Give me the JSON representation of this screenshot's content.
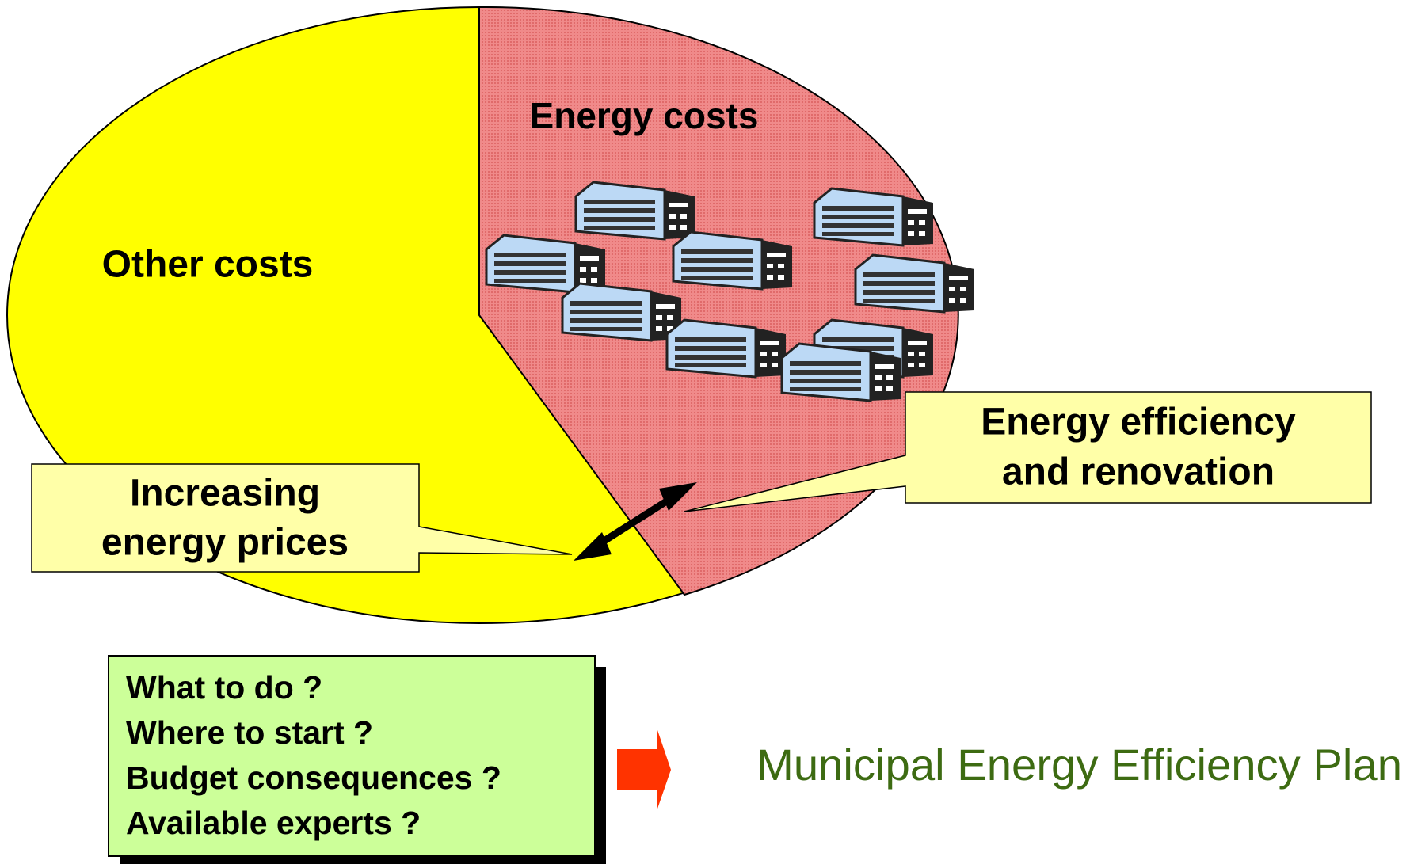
{
  "labels": {
    "energy_costs": "Energy costs",
    "other_costs": "Other costs"
  },
  "callouts": {
    "prices": [
      "Increasing",
      "energy prices"
    ],
    "efficiency": [
      "Energy efficiency",
      "and renovation"
    ]
  },
  "questions": [
    "What to do ?",
    "Where to start ?",
    "Budget consequences ?",
    "Available experts ?"
  ],
  "result": "Municipal Energy Efficiency Plan"
}
